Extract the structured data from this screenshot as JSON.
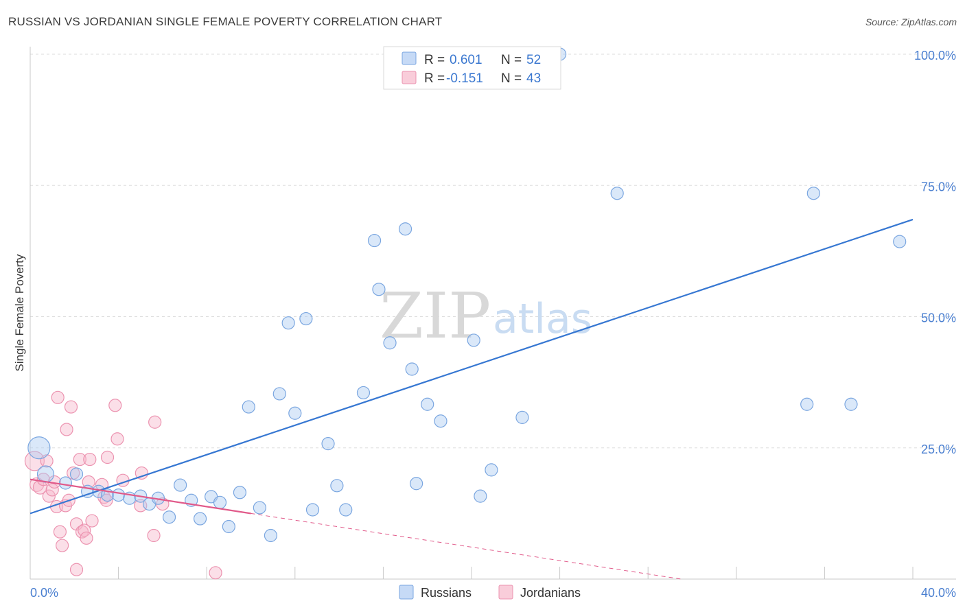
{
  "header": {
    "title": "RUSSIAN VS JORDANIAN SINGLE FEMALE POVERTY CORRELATION CHART",
    "source": "Source: ZipAtlas.com"
  },
  "watermark": {
    "zip": "ZIP",
    "atlas": "atlas"
  },
  "colors": {
    "russians_fill": "#aecbf2",
    "russians_stroke": "#7aa6e0",
    "russians_line": "#3677d2",
    "jordanians_fill": "#f7b8cb",
    "jordanians_stroke": "#ec93b0",
    "jordanians_line": "#e15a8a",
    "grid": "#dddddd",
    "tick_text": "#4a7fd0"
  },
  "legend": {
    "russians": {
      "r_label": "R =",
      "r_value": "0.601",
      "n_label": "N =",
      "n_value": "52"
    },
    "jordanians": {
      "r_label": "R =",
      "r_value": "-0.151",
      "n_label": "N =",
      "n_value": "43"
    }
  },
  "chart_data": {
    "type": "scatter",
    "ylabel": "Single Female Poverty",
    "xlabel": "",
    "xlim": [
      0,
      40
    ],
    "ylim": [
      0,
      100
    ],
    "x_tick_labels": [
      "0.0%",
      "40.0%"
    ],
    "y_tick_labels": [
      "25.0%",
      "50.0%",
      "75.0%",
      "100.0%"
    ],
    "y_ticks": [
      25,
      50,
      75,
      100
    ],
    "series": [
      {
        "name": "Russians",
        "r": 0.601,
        "n": 52,
        "trend": {
          "x": [
            0,
            40
          ],
          "y": [
            12.5,
            68.5
          ]
        },
        "points": [
          [
            0.4,
            25.0,
            16
          ],
          [
            0.7,
            20.0,
            12
          ],
          [
            1.6,
            18.3,
            9
          ],
          [
            2.1,
            20.0,
            9
          ],
          [
            2.6,
            16.7,
            9
          ],
          [
            3.1,
            16.7,
            9
          ],
          [
            3.5,
            16.0,
            9
          ],
          [
            4.0,
            16.0,
            9
          ],
          [
            4.5,
            15.4,
            9
          ],
          [
            5.0,
            15.8,
            9
          ],
          [
            5.4,
            14.3,
            9
          ],
          [
            5.8,
            15.4,
            9
          ],
          [
            6.3,
            11.8,
            9
          ],
          [
            6.8,
            17.9,
            9
          ],
          [
            7.3,
            15.0,
            9
          ],
          [
            7.7,
            11.5,
            9
          ],
          [
            8.2,
            15.7,
            9
          ],
          [
            8.6,
            14.6,
            9
          ],
          [
            9.0,
            10.0,
            9
          ],
          [
            9.5,
            16.5,
            9
          ],
          [
            9.9,
            32.8,
            9
          ],
          [
            10.4,
            13.6,
            9
          ],
          [
            10.9,
            8.3,
            9
          ],
          [
            11.3,
            35.3,
            9
          ],
          [
            11.7,
            48.8,
            9
          ],
          [
            12.0,
            31.6,
            9
          ],
          [
            12.5,
            49.6,
            9
          ],
          [
            12.8,
            13.2,
            9
          ],
          [
            13.5,
            25.8,
            9
          ],
          [
            13.9,
            17.8,
            9
          ],
          [
            14.3,
            13.2,
            9
          ],
          [
            15.1,
            35.5,
            9
          ],
          [
            15.6,
            64.5,
            9
          ],
          [
            15.8,
            55.2,
            9
          ],
          [
            16.3,
            45.0,
            9
          ],
          [
            17.0,
            66.7,
            9
          ],
          [
            17.3,
            40.0,
            9
          ],
          [
            17.5,
            18.2,
            9
          ],
          [
            18.0,
            33.3,
            9
          ],
          [
            18.6,
            30.1,
            9
          ],
          [
            20.1,
            45.5,
            9
          ],
          [
            20.4,
            15.8,
            9
          ],
          [
            20.9,
            20.8,
            9
          ],
          [
            22.3,
            30.8,
            9
          ],
          [
            22.8,
            100.0,
            9
          ],
          [
            24.0,
            100.0,
            9
          ],
          [
            26.6,
            73.5,
            9
          ],
          [
            35.5,
            73.5,
            9
          ],
          [
            35.2,
            33.3,
            9
          ],
          [
            37.2,
            33.3,
            9
          ],
          [
            39.4,
            64.3,
            9
          ]
        ]
      },
      {
        "name": "Jordanians",
        "r": -0.151,
        "n": 43,
        "trend_solid": {
          "x": [
            0,
            10.0
          ],
          "y": [
            19.0,
            12.5
          ]
        },
        "trend_dashed": {
          "x": [
            10.0,
            29.5
          ],
          "y": [
            12.5,
            0
          ]
        },
        "points": [
          [
            0.2,
            22.5,
            14
          ],
          [
            0.3,
            18.0,
            10
          ],
          [
            0.45,
            17.5,
            10
          ],
          [
            0.6,
            19.0,
            9
          ],
          [
            0.75,
            22.5,
            9
          ],
          [
            0.85,
            15.8,
            9
          ],
          [
            1.0,
            17.0,
            9
          ],
          [
            1.1,
            18.5,
            9
          ],
          [
            1.2,
            13.8,
            9
          ],
          [
            1.25,
            34.6,
            9
          ],
          [
            1.35,
            9.0,
            9
          ],
          [
            1.45,
            6.4,
            9
          ],
          [
            1.6,
            14.0,
            9
          ],
          [
            1.65,
            28.5,
            9
          ],
          [
            1.75,
            15.0,
            9
          ],
          [
            1.85,
            32.8,
            9
          ],
          [
            1.95,
            20.2,
            9
          ],
          [
            2.1,
            1.8,
            9
          ],
          [
            2.1,
            10.5,
            9
          ],
          [
            2.25,
            22.8,
            9
          ],
          [
            2.35,
            9.0,
            9
          ],
          [
            2.45,
            9.3,
            9
          ],
          [
            2.55,
            7.8,
            9
          ],
          [
            2.65,
            18.5,
            9
          ],
          [
            2.7,
            22.8,
            9
          ],
          [
            2.8,
            11.1,
            9
          ],
          [
            3.25,
            18.0,
            9
          ],
          [
            3.35,
            15.6,
            9
          ],
          [
            3.45,
            15.0,
            9
          ],
          [
            3.5,
            23.2,
            9
          ],
          [
            3.85,
            33.1,
            9
          ],
          [
            3.95,
            26.7,
            9
          ],
          [
            4.2,
            18.8,
            9
          ],
          [
            5.0,
            14.0,
            9
          ],
          [
            5.05,
            20.2,
            9
          ],
          [
            5.6,
            8.3,
            9
          ],
          [
            5.65,
            29.9,
            9
          ],
          [
            6.0,
            14.3,
            9
          ],
          [
            8.4,
            1.2,
            9
          ]
        ]
      }
    ]
  },
  "bottom_legend": {
    "russians": "Russians",
    "jordanians": "Jordanians"
  }
}
